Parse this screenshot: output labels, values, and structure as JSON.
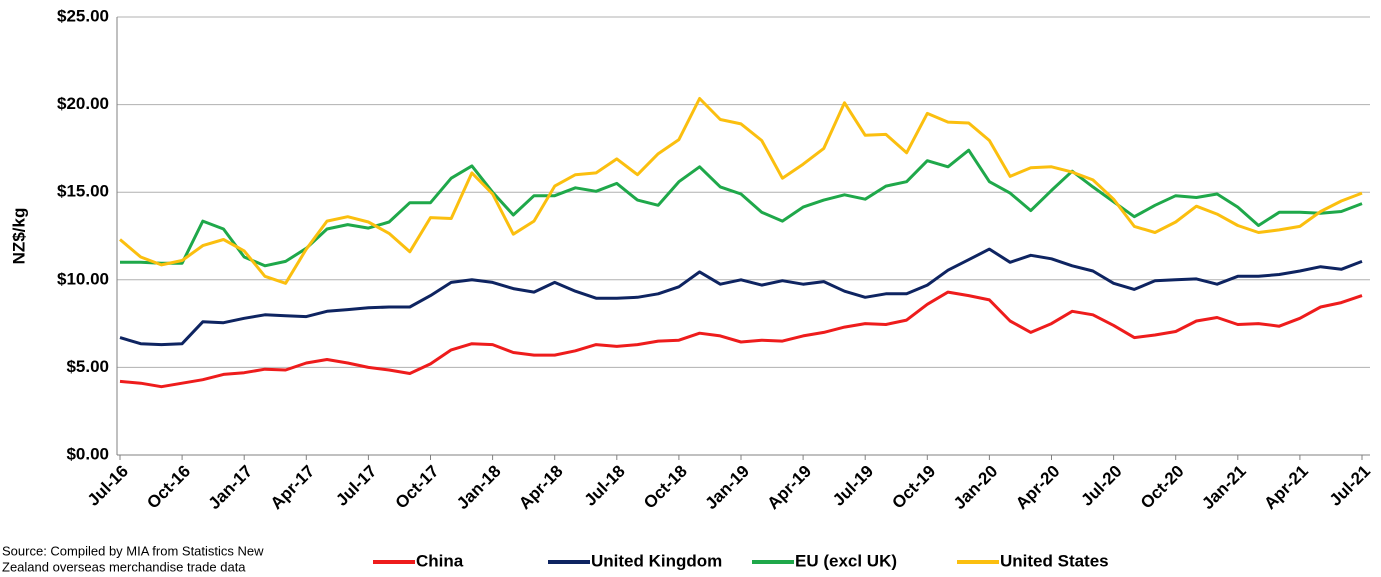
{
  "chart_data": {
    "type": "line",
    "y_label": "NZ$/kg",
    "source": [
      "Source: Compiled by MIA from Statistics New",
      "Zealand overseas merchandise trade data"
    ],
    "categories": [
      "Jul-16",
      null,
      null,
      "Oct-16",
      null,
      null,
      "Jan-17",
      null,
      null,
      "Apr-17",
      null,
      null,
      "Jul-17",
      null,
      null,
      "Oct-17",
      null,
      null,
      "Jan-18",
      null,
      null,
      "Apr-18",
      null,
      null,
      "Jul-18",
      null,
      null,
      "Oct-18",
      null,
      null,
      "Jan-19",
      null,
      null,
      "Apr-19",
      null,
      null,
      "Jul-19",
      null,
      null,
      "Oct-19",
      null,
      null,
      "Jan-20",
      null,
      null,
      "Apr-20",
      null,
      null,
      "Jul-20",
      null,
      null,
      "Oct-20",
      null,
      null,
      "Jan-21",
      null,
      null,
      "Apr-21",
      null,
      null,
      "Jul-21"
    ],
    "ylim": [
      0,
      25
    ],
    "yticks": [
      {
        "value": 0,
        "label": "$0.00"
      },
      {
        "value": 5,
        "label": "$5.00"
      },
      {
        "value": 10,
        "label": "$10.00"
      },
      {
        "value": 15,
        "label": "$15.00"
      },
      {
        "value": 20,
        "label": "$20.00"
      },
      {
        "value": 25,
        "label": "$25.00"
      }
    ],
    "grid": true,
    "legend": "bottom",
    "series": [
      {
        "name": "China",
        "color": "#ee1c1c",
        "values": [
          4.2,
          4.1,
          3.9,
          4.1,
          4.3,
          4.6,
          4.7,
          4.9,
          4.85,
          5.25,
          5.45,
          5.25,
          5.0,
          4.85,
          4.65,
          5.2,
          6.0,
          6.35,
          6.3,
          5.85,
          5.7,
          5.7,
          5.95,
          6.3,
          6.2,
          6.3,
          6.5,
          6.55,
          6.95,
          6.8,
          6.45,
          6.55,
          6.5,
          6.8,
          7.0,
          7.3,
          7.5,
          7.45,
          7.7,
          8.6,
          9.3,
          9.1,
          8.85,
          7.65,
          7.0,
          7.5,
          8.2,
          8.0,
          7.4,
          6.7,
          6.85,
          7.05,
          7.65,
          7.85,
          7.45,
          7.5,
          7.35,
          7.8,
          8.45,
          8.7,
          9.1
        ]
      },
      {
        "name": "United Kingdom",
        "color": "#0e2461",
        "values": [
          6.7,
          6.35,
          6.3,
          6.35,
          7.6,
          7.55,
          7.8,
          8.0,
          7.95,
          7.9,
          8.2,
          8.3,
          8.4,
          8.45,
          8.45,
          9.1,
          9.85,
          10.0,
          9.85,
          9.5,
          9.3,
          9.85,
          9.35,
          8.95,
          8.95,
          9.0,
          9.2,
          9.6,
          10.45,
          9.75,
          10.0,
          9.7,
          9.95,
          9.75,
          9.9,
          9.35,
          9.0,
          9.2,
          9.2,
          9.7,
          10.55,
          11.15,
          11.75,
          11.0,
          11.4,
          11.2,
          10.8,
          10.5,
          9.8,
          9.45,
          9.95,
          10.0,
          10.05,
          9.75,
          10.2,
          10.2,
          10.3,
          10.5,
          10.75,
          10.6,
          11.05
        ]
      },
      {
        "name": "EU (excl UK)",
        "color": "#1fa84a",
        "values": [
          11.0,
          11.0,
          10.95,
          10.95,
          13.35,
          12.9,
          11.3,
          10.8,
          11.05,
          11.8,
          12.9,
          13.15,
          12.95,
          13.3,
          14.4,
          14.4,
          15.8,
          16.5,
          15.0,
          13.7,
          14.8,
          14.8,
          15.25,
          15.05,
          15.5,
          14.55,
          14.25,
          15.6,
          16.45,
          15.3,
          14.9,
          13.85,
          13.35,
          14.15,
          14.55,
          14.85,
          14.6,
          15.35,
          15.6,
          16.8,
          16.45,
          17.4,
          15.6,
          14.95,
          13.95,
          15.1,
          16.2,
          15.3,
          14.45,
          13.6,
          14.25,
          14.8,
          14.7,
          14.9,
          14.15,
          13.1,
          13.85,
          13.85,
          13.8,
          13.9,
          14.35
        ]
      },
      {
        "name": "United States",
        "color": "#fbbf0f",
        "values": [
          12.3,
          11.3,
          10.85,
          11.1,
          11.95,
          12.3,
          11.65,
          10.2,
          9.8,
          11.75,
          13.35,
          13.6,
          13.3,
          12.65,
          11.6,
          13.55,
          13.5,
          16.1,
          14.9,
          12.6,
          13.35,
          15.35,
          16.0,
          16.1,
          16.9,
          16.0,
          17.2,
          18.0,
          20.35,
          19.15,
          18.9,
          17.95,
          15.8,
          16.6,
          17.5,
          20.1,
          18.25,
          18.3,
          17.25,
          19.5,
          19.0,
          18.95,
          17.95,
          15.9,
          16.4,
          16.45,
          16.15,
          15.7,
          14.6,
          13.05,
          12.7,
          13.3,
          14.2,
          13.75,
          13.1,
          12.7,
          12.85,
          13.05,
          13.9,
          14.5,
          14.95
        ]
      }
    ]
  }
}
